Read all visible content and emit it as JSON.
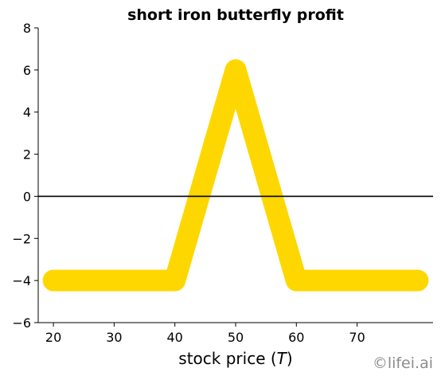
{
  "chart_data": {
    "type": "line",
    "title": "short iron butterfly profit",
    "xlabel_prefix": "stock price (",
    "xlabel_var": "T",
    "xlabel_suffix": ")",
    "ylabel": "",
    "xlim": [
      17.5,
      82.5
    ],
    "ylim": [
      -6,
      8
    ],
    "x_ticks": [
      20,
      30,
      40,
      50,
      60,
      70
    ],
    "y_ticks": [
      8,
      6,
      4,
      2,
      0,
      -2,
      -4,
      -6
    ],
    "y_tick_labels": [
      "8",
      "6",
      "4",
      "2",
      "0",
      "−2",
      "−4",
      "−6"
    ],
    "zero_line": 0,
    "series": [
      {
        "color": "#FFD700",
        "x": [
          20,
          40,
          50,
          60,
          80
        ],
        "y": [
          -4,
          -4,
          6,
          -4,
          -4
        ]
      }
    ],
    "grid": false,
    "legend": "none"
  },
  "watermark": "©lifei.ai"
}
